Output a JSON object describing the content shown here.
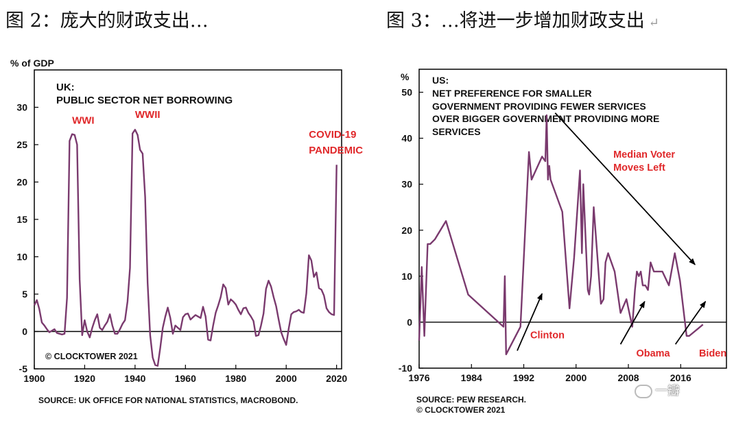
{
  "figures": {
    "left_title": "图 2：庞大的财政支出…",
    "right_title": "图 3：…将进一步增加财政支出",
    "right_title_mark": "↵"
  },
  "watermark": "一瓣",
  "colors": {
    "line": "#7a3a6e",
    "annotation": "#e0282a",
    "text": "#111111",
    "axis": "#000000"
  },
  "chart_data": [
    {
      "type": "line",
      "ylabel": "% of GDP",
      "title": "UK:",
      "subtitle": "PUBLIC SECTOR NET BORROWING",
      "copyright": "© CLOCKTOWER 2021",
      "source": "SOURCE: UK OFFICE FOR NATIONAL STATISTICS, MACROBOND.",
      "xlim": [
        1900,
        2022
      ],
      "ylim": [
        -5,
        35
      ],
      "xticks": [
        1900,
        1920,
        1940,
        1960,
        1980,
        2000,
        2020
      ],
      "xtick_labels": [
        "1900",
        "1920",
        "1940",
        "1960",
        "1980",
        "2000",
        "2020"
      ],
      "yticks": [
        -5,
        0,
        5,
        10,
        15,
        20,
        25,
        30
      ],
      "ytick_labels": [
        "-5",
        "0",
        "5",
        "10",
        "15",
        "20",
        "25",
        "30"
      ],
      "zero_line": true,
      "annotations": [
        {
          "text": "WWI",
          "x": 1915,
          "y": 27.8
        },
        {
          "text": "WWII",
          "x": 1940,
          "y": 28.6
        },
        {
          "text": "COVID-19",
          "x": 2009,
          "y": 25.9
        },
        {
          "text": "PANDEMIC",
          "x": 2009,
          "y": 23.8
        }
      ],
      "series": [
        {
          "name": "Public sector net borrowing",
          "x": [
            1900,
            1901,
            1902,
            1903,
            1904,
            1905,
            1906,
            1907,
            1908,
            1909,
            1910,
            1911,
            1912,
            1913,
            1914,
            1915,
            1916,
            1917,
            1918,
            1919,
            1920,
            1921,
            1922,
            1923,
            1924,
            1925,
            1926,
            1927,
            1928,
            1929,
            1930,
            1931,
            1932,
            1933,
            1934,
            1935,
            1936,
            1937,
            1938,
            1939,
            1940,
            1941,
            1942,
            1943,
            1944,
            1945,
            1946,
            1947,
            1948,
            1949,
            1950,
            1951,
            1952,
            1953,
            1954,
            1955,
            1956,
            1957,
            1958,
            1959,
            1960,
            1961,
            1962,
            1963,
            1964,
            1965,
            1966,
            1967,
            1968,
            1969,
            1970,
            1971,
            1972,
            1973,
            1974,
            1975,
            1976,
            1977,
            1978,
            1979,
            1980,
            1981,
            1982,
            1983,
            1984,
            1985,
            1986,
            1987,
            1988,
            1989,
            1990,
            1991,
            1992,
            1993,
            1994,
            1995,
            1996,
            1997,
            1998,
            1999,
            2000,
            2001,
            2002,
            2003,
            2004,
            2005,
            2006,
            2007,
            2008,
            2009,
            2010,
            2011,
            2012,
            2013,
            2014,
            2015,
            2016,
            2017,
            2018,
            2019,
            2020
          ],
          "y": [
            3.5,
            4.2,
            3.0,
            1.2,
            0.8,
            0.3,
            -0.1,
            0.1,
            0.3,
            -0.2,
            -0.3,
            -0.4,
            -0.3,
            4.5,
            25.5,
            26.4,
            26.3,
            25.0,
            7.0,
            -0.5,
            1.5,
            0.0,
            -0.8,
            0.5,
            1.5,
            2.3,
            0.5,
            0.2,
            0.8,
            1.3,
            2.3,
            0.8,
            -0.3,
            -0.3,
            0.3,
            1.0,
            1.5,
            4.0,
            8.5,
            26.5,
            27.0,
            26.3,
            24.3,
            23.8,
            18.0,
            6.5,
            -0.5,
            -3.5,
            -4.5,
            -4.6,
            -2.2,
            0.5,
            2.0,
            3.2,
            1.8,
            -0.3,
            0.8,
            0.5,
            0.2,
            1.9,
            2.3,
            2.4,
            1.6,
            1.9,
            2.2,
            2.0,
            1.8,
            3.3,
            2.0,
            -1.1,
            -1.2,
            0.8,
            2.5,
            3.5,
            4.6,
            6.3,
            5.8,
            3.6,
            4.3,
            4.0,
            3.6,
            2.9,
            2.3,
            3.1,
            3.2,
            2.5,
            2.0,
            1.4,
            -0.6,
            -0.5,
            0.8,
            2.4,
            5.7,
            6.8,
            6.0,
            4.6,
            3.4,
            1.6,
            -0.1,
            -1.0,
            -1.8,
            0.4,
            2.3,
            2.6,
            2.7,
            2.9,
            2.6,
            2.5,
            5.1,
            10.2,
            9.5,
            7.3,
            7.9,
            5.8,
            5.6,
            4.8,
            3.1,
            2.6,
            2.3,
            2.2,
            22.3
          ]
        }
      ]
    },
    {
      "type": "line",
      "ylabel": "%",
      "title": "US:",
      "subtitle_lines": [
        "NET PREFERENCE FOR SMALLER",
        "GOVERNMENT PROVIDING FEWER SERVICES",
        "OVER BIGGER GOVERNMENT PROVIDING MORE",
        "SERVICES"
      ],
      "source": "SOURCE: PEW RESEARCH.",
      "copyright": "© CLOCKTOWER 2021",
      "xlim": [
        1976,
        2023
      ],
      "ylim": [
        -10,
        55
      ],
      "xticks": [
        1976,
        1984,
        1992,
        2000,
        2008,
        2016
      ],
      "xtick_labels": [
        "1976",
        "1984",
        "1992",
        "2000",
        "2008",
        "2016"
      ],
      "yticks": [
        -10,
        0,
        10,
        20,
        30,
        40,
        50
      ],
      "ytick_labels": [
        "-10",
        "0",
        "10",
        "20",
        "30",
        "40",
        "50"
      ],
      "zero_line": true,
      "annotations": [
        {
          "text": "Median Voter",
          "x": 2005.7,
          "y": 35.8,
          "arrow_from": [
            1996.8,
            45.5
          ],
          "arrow_to": [
            2018.2,
            12.5
          ]
        },
        {
          "text": "Moves Left",
          "x": 2005.7,
          "y": 32.9
        },
        {
          "text": "Clinton",
          "x": 1993.0,
          "y": -3.5,
          "arrow_from": [
            1991.0,
            -6.2
          ],
          "arrow_to": [
            1994.8,
            6.2
          ]
        },
        {
          "text": "Obama",
          "x": 2009.2,
          "y": -7.5,
          "arrow_from": [
            2006.8,
            -4.8
          ],
          "arrow_to": [
            2010.5,
            4.5
          ]
        },
        {
          "text": "Biden",
          "x": 2018.8,
          "y": -7.5,
          "arrow_from": [
            2015.2,
            -4.8
          ],
          "arrow_to": [
            2019.8,
            4.5
          ]
        }
      ],
      "series": [
        {
          "name": "Net preference",
          "x": [
            1976.0,
            1976.4,
            1976.8,
            1977.3,
            1977.7,
            1978.4,
            1980.1,
            1983.5,
            1988.9,
            1989.1,
            1989.3,
            1991.5,
            1992.8,
            1993.2,
            1994.8,
            1995.3,
            1995.5,
            1995.7,
            1995.9,
            1996.1,
            1997.9,
            1999.0,
            1999.7,
            2000.6,
            2000.9,
            2001.1,
            2001.8,
            2002.0,
            2002.3,
            2002.7,
            2003.8,
            2004.2,
            2004.5,
            2004.9,
            2005.9,
            2006.8,
            2007.7,
            2008.6,
            2009.0,
            2009.3,
            2009.6,
            2009.9,
            2010.2,
            2010.6,
            2011.0,
            2011.4,
            2011.9,
            2012.4,
            2013.2,
            2014.2,
            2015.1,
            2015.9,
            2016.9,
            2017.3,
            2019.0,
            2019.4
          ],
          "y": [
            -4,
            12,
            -3,
            17,
            17,
            18,
            22,
            6,
            -1,
            10,
            -7,
            -1,
            37,
            31,
            36,
            35,
            45,
            31,
            34,
            31,
            24,
            3,
            14,
            33,
            15,
            30,
            7,
            6,
            10,
            25,
            4,
            5,
            13,
            15,
            11,
            2,
            5,
            -1,
            7,
            11,
            10,
            11,
            8,
            8,
            7,
            13,
            11,
            11,
            11,
            8,
            15,
            9,
            -3,
            -3,
            -1,
            -0.5
          ]
        }
      ]
    }
  ]
}
